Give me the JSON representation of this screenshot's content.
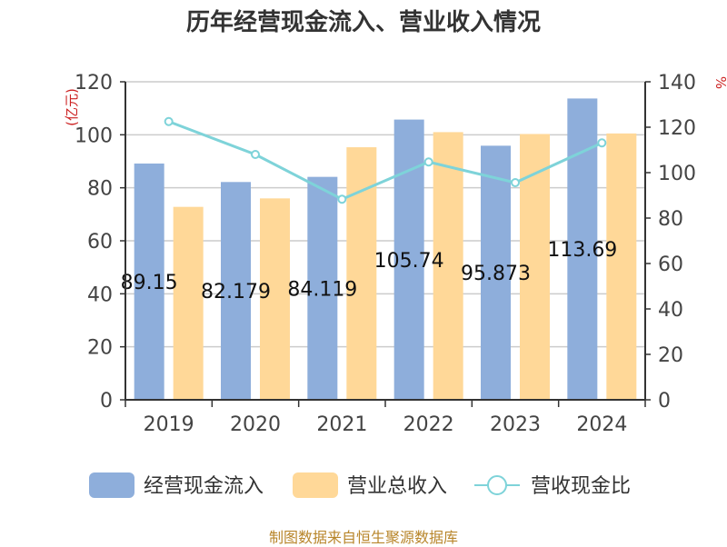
{
  "chart_data": {
    "type": "bar",
    "title": "历年经营现金流入、营业收入情况",
    "categories": [
      "2019",
      "2020",
      "2021",
      "2022",
      "2023",
      "2024"
    ],
    "series": [
      {
        "name": "经营现金流入",
        "type": "bar",
        "axis": "left",
        "color": "#8eaedb",
        "values": [
          89.15,
          82.179,
          84.119,
          105.74,
          95.873,
          113.69
        ]
      },
      {
        "name": "营业总收入",
        "type": "bar",
        "axis": "left",
        "color": "#ffd898",
        "values": [
          72.8,
          76.0,
          95.3,
          101.0,
          100.3,
          100.5
        ]
      },
      {
        "name": "营收现金比",
        "type": "line",
        "axis": "right",
        "color": "#7ed3d9",
        "values": [
          122.5,
          108.0,
          88.3,
          104.7,
          95.6,
          113.1
        ]
      }
    ],
    "data_labels": [
      "89.15",
      "82.179",
      "84.119",
      "105.74",
      "95.873",
      "113.69"
    ],
    "y_left": {
      "label": "(亿元)",
      "ylim": [
        0,
        120
      ],
      "ticks": [
        "0",
        "20",
        "40",
        "60",
        "80",
        "100",
        "120"
      ]
    },
    "y_right": {
      "label": "%",
      "ylim": [
        0,
        140
      ],
      "ticks": [
        "0",
        "20",
        "40",
        "60",
        "80",
        "100",
        "120",
        "140"
      ]
    },
    "grid": true,
    "legend_position": "bottom",
    "source_note": "制图数据来自恒生聚源数据库"
  }
}
